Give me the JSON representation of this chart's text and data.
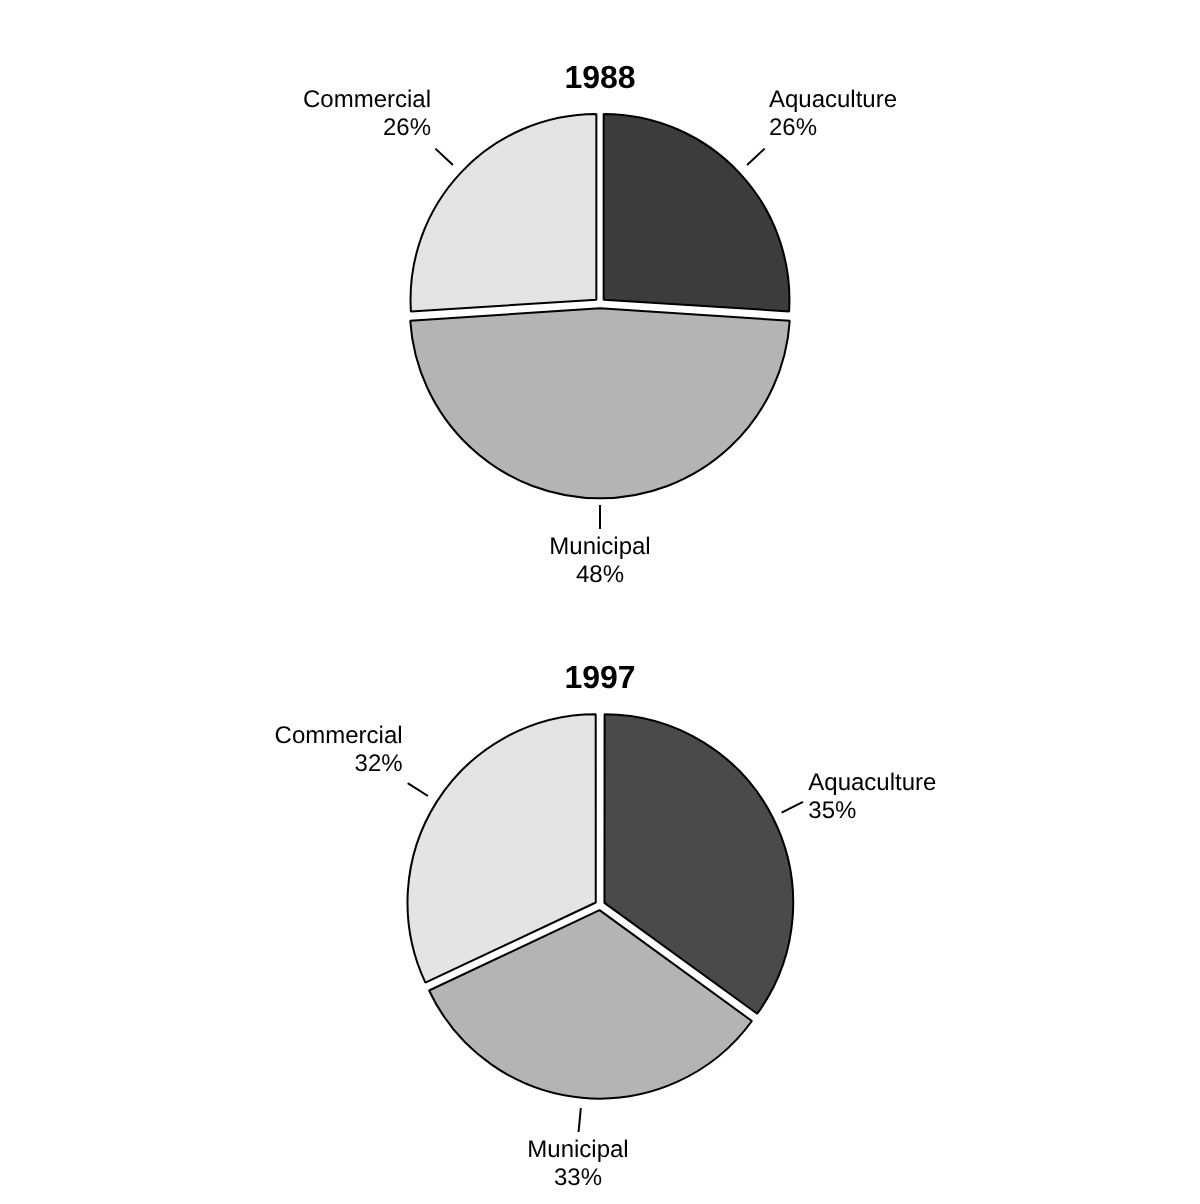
{
  "chart_data": [
    {
      "type": "pie",
      "title": "1988",
      "categories": [
        "Aquaculture",
        "Municipal",
        "Commercial"
      ],
      "values": [
        26,
        48,
        26
      ],
      "value_labels": [
        "26%",
        "48%",
        "26%"
      ],
      "colors": [
        "#3c3c3c",
        "#b4b4b4",
        "#e4e4e4"
      ]
    },
    {
      "type": "pie",
      "title": "1997",
      "categories": [
        "Aquaculture",
        "Municipal",
        "Commercial"
      ],
      "values": [
        35,
        33,
        32
      ],
      "value_labels": [
        "35%",
        "33%",
        "32%"
      ],
      "colors": [
        "#4a4a4a",
        "#b4b4b4",
        "#e4e4e4"
      ]
    }
  ]
}
